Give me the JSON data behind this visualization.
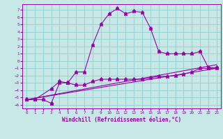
{
  "xlabel": "Windchill (Refroidissement éolien,°C)",
  "background_color": "#c8e8e8",
  "grid_color": "#8ccece",
  "line_color": "#9900aa",
  "xlim": [
    -0.5,
    23.5
  ],
  "ylim": [
    -6.5,
    7.8
  ],
  "xticks": [
    0,
    1,
    2,
    3,
    4,
    5,
    6,
    7,
    8,
    9,
    10,
    11,
    12,
    13,
    14,
    15,
    16,
    17,
    18,
    19,
    20,
    21,
    22,
    23
  ],
  "yticks": [
    -6,
    -5,
    -4,
    -3,
    -2,
    -1,
    0,
    1,
    2,
    3,
    4,
    5,
    6,
    7
  ],
  "line1_x": [
    0,
    1,
    3,
    4,
    5,
    6,
    7,
    8,
    9,
    10,
    11,
    12,
    13,
    14,
    15,
    16,
    17,
    18,
    19,
    20,
    21,
    22,
    23
  ],
  "line1_y": [
    -5.3,
    -5.3,
    -3.8,
    -2.8,
    -3.0,
    -1.5,
    -1.5,
    2.2,
    5.0,
    6.5,
    7.2,
    6.5,
    6.8,
    6.7,
    4.5,
    1.3,
    1.0,
    1.0,
    1.0,
    1.0,
    1.3,
    -0.9,
    -0.9
  ],
  "line2_x": [
    0,
    1,
    2,
    3,
    3,
    4,
    5,
    5,
    6,
    7,
    8,
    9,
    10,
    11,
    12,
    13,
    14,
    15,
    16,
    17,
    18,
    19,
    20,
    21,
    22,
    23
  ],
  "line2_y": [
    -5.3,
    -5.3,
    -5.3,
    -5.8,
    -5.8,
    -3.0,
    -3.0,
    -3.0,
    -3.3,
    -3.3,
    -2.8,
    -2.5,
    -2.5,
    -2.5,
    -2.5,
    -2.5,
    -2.5,
    -2.3,
    -2.1,
    -2.1,
    -2.0,
    -1.8,
    -1.5,
    -1.0,
    -1.0,
    -1.0
  ],
  "line3_x": [
    0,
    23
  ],
  "line3_y": [
    -5.3,
    -1.0
  ],
  "line4_x": [
    0,
    23
  ],
  "line4_y": [
    -5.3,
    -0.5
  ],
  "xlabel_fontsize": 5.5,
  "tick_fontsize": 4.2
}
